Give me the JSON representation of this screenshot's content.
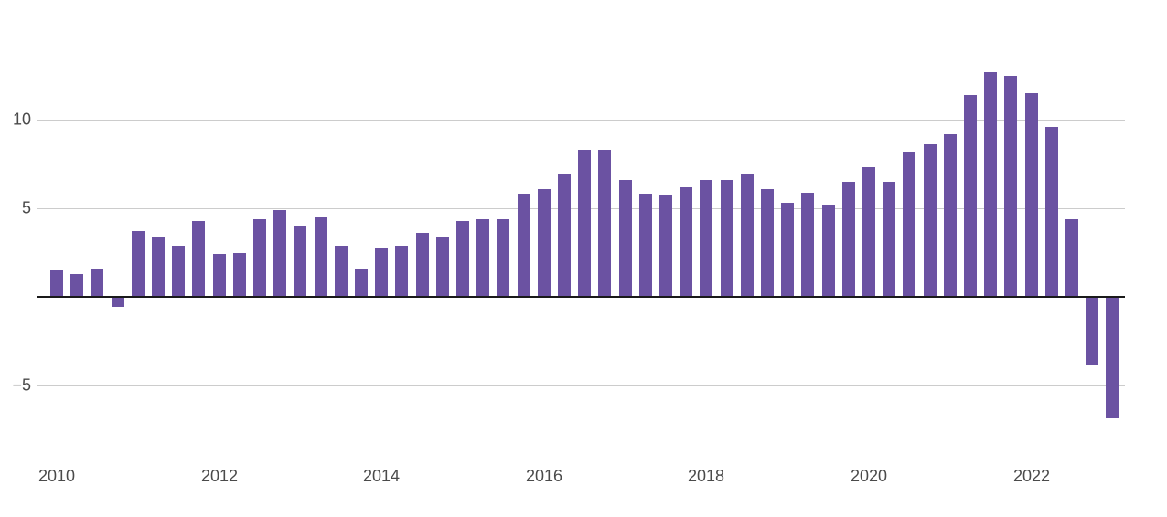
{
  "chart_data": {
    "type": "bar",
    "title": "",
    "xlabel": "",
    "ylabel": "",
    "x": [
      "2010 Q1",
      "2010 Q2",
      "2010 Q3",
      "2010 Q4",
      "2011 Q1",
      "2011 Q2",
      "2011 Q3",
      "2011 Q4",
      "2012 Q1",
      "2012 Q2",
      "2012 Q3",
      "2012 Q4",
      "2013 Q1",
      "2013 Q2",
      "2013 Q3",
      "2013 Q4",
      "2014 Q1",
      "2014 Q2",
      "2014 Q3",
      "2014 Q4",
      "2015 Q1",
      "2015 Q2",
      "2015 Q3",
      "2015 Q4",
      "2016 Q1",
      "2016 Q2",
      "2016 Q3",
      "2016 Q4",
      "2017 Q1",
      "2017 Q2",
      "2017 Q3",
      "2017 Q4",
      "2018 Q1",
      "2018 Q2",
      "2018 Q3",
      "2018 Q4",
      "2019 Q1",
      "2019 Q2",
      "2019 Q3",
      "2019 Q4",
      "2020 Q1",
      "2020 Q2",
      "2020 Q3",
      "2020 Q4",
      "2021 Q1",
      "2021 Q2",
      "2021 Q3",
      "2021 Q4",
      "2022 Q1",
      "2022 Q2",
      "2022 Q3",
      "2022 Q4",
      "2023 Q1"
    ],
    "values": [
      1.5,
      1.3,
      1.6,
      -0.5,
      3.7,
      3.4,
      2.9,
      4.3,
      2.4,
      2.5,
      4.4,
      4.9,
      4.0,
      4.5,
      2.9,
      1.6,
      2.8,
      2.9,
      3.6,
      3.4,
      4.3,
      4.4,
      4.4,
      5.8,
      6.1,
      6.9,
      8.3,
      8.3,
      6.6,
      5.8,
      5.7,
      6.2,
      6.6,
      6.6,
      6.9,
      6.1,
      5.3,
      5.9,
      5.2,
      6.5,
      7.3,
      6.5,
      8.2,
      8.6,
      9.2,
      11.4,
      12.7,
      12.5,
      11.5,
      9.6,
      4.4,
      -3.8,
      -6.8
    ],
    "y_ticks": [
      {
        "value": 10,
        "label": "10"
      },
      {
        "value": 5,
        "label": "5"
      },
      {
        "value": -5,
        "label": "−5"
      }
    ],
    "x_ticks": [
      {
        "bar_index": 0,
        "label": "2010"
      },
      {
        "bar_index": 8,
        "label": "2012"
      },
      {
        "bar_index": 16,
        "label": "2014"
      },
      {
        "bar_index": 24,
        "label": "2016"
      },
      {
        "bar_index": 32,
        "label": "2018"
      },
      {
        "bar_index": 40,
        "label": "2020"
      },
      {
        "bar_index": 48,
        "label": "2022"
      }
    ],
    "ylim": [
      -7.5,
      13.5
    ],
    "grid": true,
    "legend": "none",
    "bar_color": "#6b52a2",
    "gridline_color": "#cccccc",
    "zero_line_color": "#1a1a1a",
    "tick_label_color": "#4a4a4a"
  }
}
